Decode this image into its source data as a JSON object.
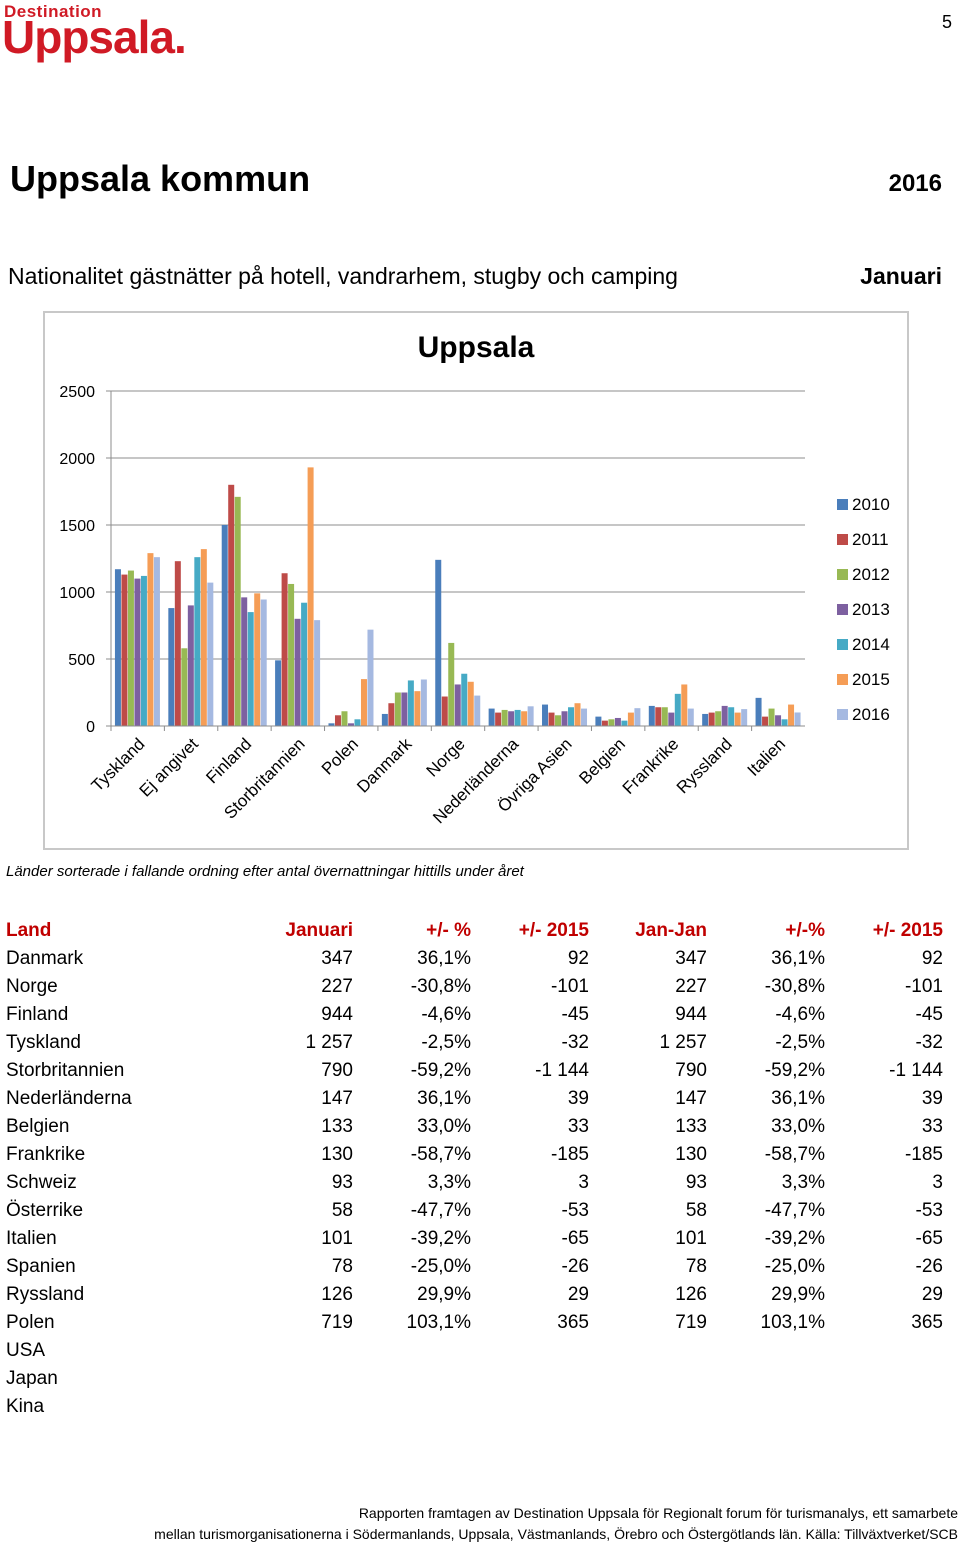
{
  "logo": {
    "top": "Destination",
    "main": "Uppsala."
  },
  "page_number": "5",
  "title": "Uppsala kommun",
  "year": "2016",
  "subtitle": "Nationalitet gästnätter på hotell, vandrarhem, stugby och camping",
  "month": "Januari",
  "note": "Länder sorterade i fallande ordning efter antal övernattningar hittills under året",
  "chart_data": {
    "type": "bar",
    "title": "Uppsala",
    "categories": [
      "Tyskland",
      "Ej angivet",
      "Finland",
      "Storbritannien",
      "Polen",
      "Danmark",
      "Norge",
      "Nederländerna",
      "Övriga Asien",
      "Belgien",
      "Frankrike",
      "Ryssland",
      "Italien"
    ],
    "ylim": [
      0,
      2500
    ],
    "yticks": [
      0,
      500,
      1000,
      1500,
      2000,
      2500
    ],
    "grid": true,
    "legend": "right",
    "series": [
      {
        "name": "2010",
        "color": "#4a7ebb",
        "values": [
          1170,
          880,
          1500,
          490,
          20,
          90,
          1240,
          130,
          160,
          70,
          150,
          90,
          210
        ]
      },
      {
        "name": "2011",
        "color": "#be4b48",
        "values": [
          1130,
          1230,
          1800,
          1140,
          80,
          170,
          220,
          100,
          100,
          40,
          140,
          100,
          70
        ]
      },
      {
        "name": "2012",
        "color": "#98b954",
        "values": [
          1160,
          580,
          1710,
          1060,
          110,
          250,
          620,
          120,
          80,
          50,
          140,
          110,
          130
        ]
      },
      {
        "name": "2013",
        "color": "#7d60a0",
        "values": [
          1100,
          900,
          960,
          800,
          20,
          250,
          310,
          110,
          110,
          60,
          100,
          150,
          80
        ]
      },
      {
        "name": "2014",
        "color": "#46aac5",
        "values": [
          1120,
          1260,
          850,
          920,
          50,
          340,
          390,
          120,
          140,
          40,
          240,
          140,
          50
        ]
      },
      {
        "name": "2015",
        "color": "#f59d56",
        "values": [
          1290,
          1320,
          990,
          1930,
          350,
          260,
          330,
          110,
          170,
          100,
          310,
          100,
          160
        ]
      },
      {
        "name": "2016",
        "color": "#a5b9e1",
        "values": [
          1260,
          1070,
          944,
          790,
          719,
          347,
          227,
          147,
          130,
          133,
          130,
          126,
          101
        ]
      }
    ]
  },
  "table": {
    "headers": [
      "Land",
      "Januari",
      "+/- %",
      "+/- 2015",
      "Jan-Jan",
      "+/-%",
      "+/- 2015"
    ],
    "rows": [
      [
        "Danmark",
        "347",
        "36,1%",
        "92",
        "347",
        "36,1%",
        "92"
      ],
      [
        "Norge",
        "227",
        "-30,8%",
        "-101",
        "227",
        "-30,8%",
        "-101"
      ],
      [
        "Finland",
        "944",
        "-4,6%",
        "-45",
        "944",
        "-4,6%",
        "-45"
      ],
      [
        "Tyskland",
        "1 257",
        "-2,5%",
        "-32",
        "1 257",
        "-2,5%",
        "-32"
      ],
      [
        "Storbritannien",
        "790",
        "-59,2%",
        "-1 144",
        "790",
        "-59,2%",
        "-1 144"
      ],
      [
        "Nederländerna",
        "147",
        "36,1%",
        "39",
        "147",
        "36,1%",
        "39"
      ],
      [
        "Belgien",
        "133",
        "33,0%",
        "33",
        "133",
        "33,0%",
        "33"
      ],
      [
        "Frankrike",
        "130",
        "-58,7%",
        "-185",
        "130",
        "-58,7%",
        "-185"
      ],
      [
        "Schweiz",
        "93",
        "3,3%",
        "3",
        "93",
        "3,3%",
        "3"
      ],
      [
        "Österrike",
        "58",
        "-47,7%",
        "-53",
        "58",
        "-47,7%",
        "-53"
      ],
      [
        "Italien",
        "101",
        "-39,2%",
        "-65",
        "101",
        "-39,2%",
        "-65"
      ],
      [
        "Spanien",
        "78",
        "-25,0%",
        "-26",
        "78",
        "-25,0%",
        "-26"
      ],
      [
        "Ryssland",
        "126",
        "29,9%",
        "29",
        "126",
        "29,9%",
        "29"
      ],
      [
        "Polen",
        "719",
        "103,1%",
        "365",
        "719",
        "103,1%",
        "365"
      ],
      [
        "USA",
        "",
        "",
        "",
        "",
        "",
        ""
      ],
      [
        "Japan",
        "",
        "",
        "",
        "",
        "",
        ""
      ],
      [
        "Kina",
        "",
        "",
        "",
        "",
        "",
        ""
      ]
    ]
  },
  "footer": {
    "line1": "Rapporten framtagen av Destination Uppsala för Regionalt forum för turismanalys, ett samarbete",
    "line2": "mellan turismorganisationerna i Södermanlands, Uppsala, Västmanlands, Örebro och Östergötlands län. Källa: Tillväxtverket/SCB"
  }
}
